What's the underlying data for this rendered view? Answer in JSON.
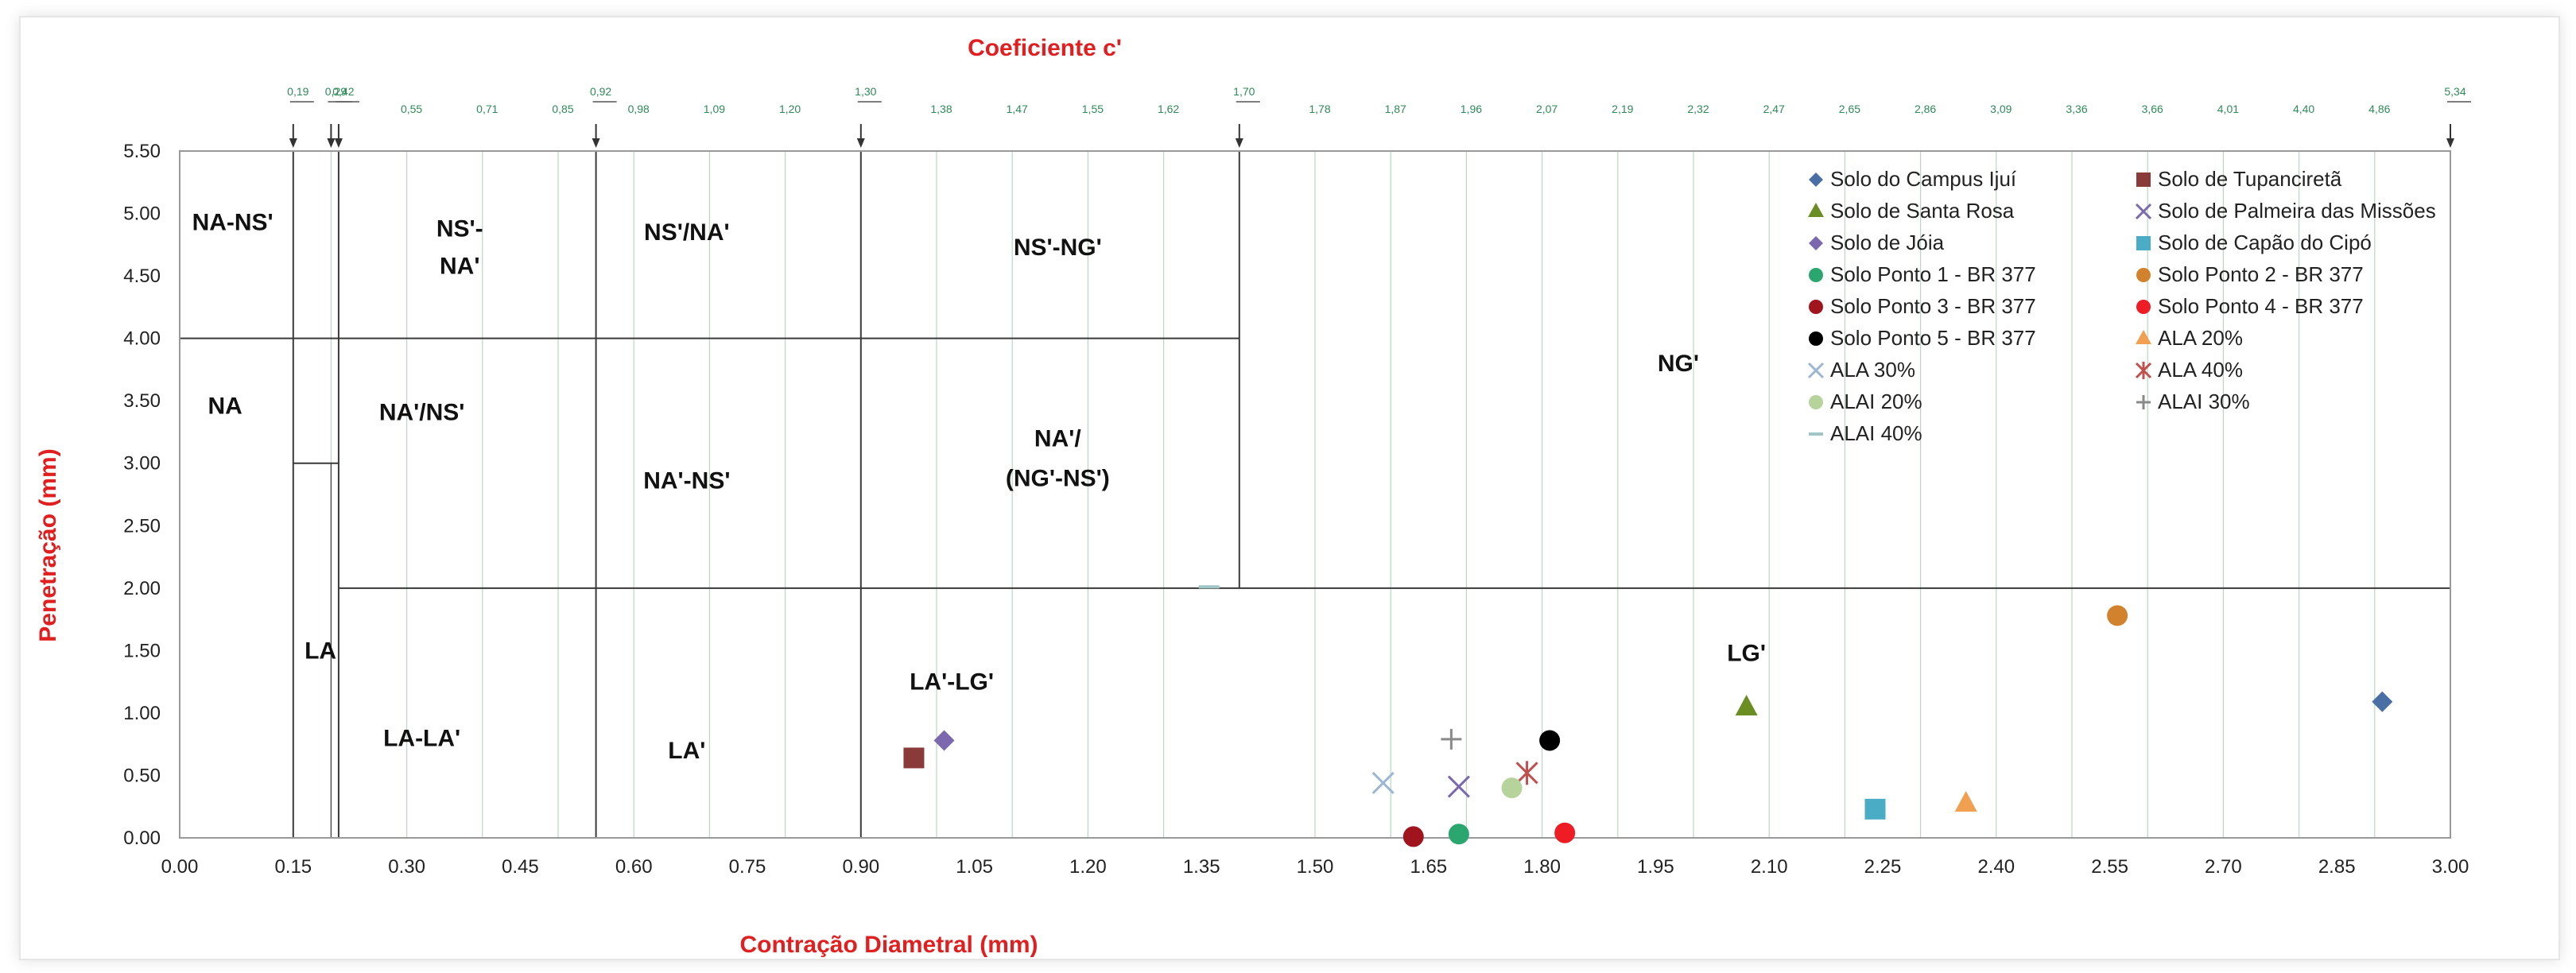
{
  "chart_data": {
    "type": "scatter",
    "title": "Coeficiente c'",
    "xlabel": "Contração Diametral  (mm)",
    "ylabel": "Penetração (mm)",
    "xlim": [
      0,
      3.0
    ],
    "ylim": [
      0,
      5.5
    ],
    "x_ticks": [
      "0.00",
      "0.15",
      "0.30",
      "0.45",
      "0.60",
      "0.75",
      "0.90",
      "1.05",
      "1.20",
      "1.35",
      "1.50",
      "1.65",
      "1.80",
      "1.95",
      "2.10",
      "2.25",
      "2.40",
      "2.55",
      "2.70",
      "2.85",
      "3.00"
    ],
    "y_ticks": [
      "0.00",
      "0.50",
      "1.00",
      "1.50",
      "2.00",
      "2.50",
      "3.00",
      "3.50",
      "4.00",
      "4.50",
      "5.00",
      "5.50"
    ],
    "top_axis_ticks": [
      {
        "x": 0.15,
        "label": "0,19"
      },
      {
        "x": 0.2,
        "label": "0,29"
      },
      {
        "x": 0.21,
        "label": "0,42"
      },
      {
        "x": 0.3,
        "label": "0,55"
      },
      {
        "x": 0.4,
        "label": "0,71"
      },
      {
        "x": 0.5,
        "label": "0,85"
      },
      {
        "x": 0.55,
        "label": "0,92"
      },
      {
        "x": 0.6,
        "label": "0,98"
      },
      {
        "x": 0.7,
        "label": "1,09"
      },
      {
        "x": 0.8,
        "label": "1,20"
      },
      {
        "x": 0.9,
        "label": "1,30"
      },
      {
        "x": 1.0,
        "label": "1,38"
      },
      {
        "x": 1.1,
        "label": "1,47"
      },
      {
        "x": 1.2,
        "label": "1,55"
      },
      {
        "x": 1.3,
        "label": "1,62"
      },
      {
        "x": 1.4,
        "label": "1,70"
      },
      {
        "x": 1.5,
        "label": "1,78"
      },
      {
        "x": 1.6,
        "label": "1,87"
      },
      {
        "x": 1.7,
        "label": "1,96"
      },
      {
        "x": 1.8,
        "label": "2,07"
      },
      {
        "x": 1.9,
        "label": "2,19"
      },
      {
        "x": 2.0,
        "label": "2,32"
      },
      {
        "x": 2.1,
        "label": "2,47"
      },
      {
        "x": 2.2,
        "label": "2,65"
      },
      {
        "x": 2.3,
        "label": "2,86"
      },
      {
        "x": 2.4,
        "label": "3,09"
      },
      {
        "x": 2.5,
        "label": "3,36"
      },
      {
        "x": 2.6,
        "label": "3,66"
      },
      {
        "x": 2.7,
        "label": "4,01"
      },
      {
        "x": 2.8,
        "label": "4,40"
      },
      {
        "x": 2.9,
        "label": "4,86"
      },
      {
        "x": 3.0,
        "label": "5,34"
      }
    ],
    "zone_labels": [
      {
        "text": "NA-NS'",
        "x": 0.07,
        "y": 4.93
      },
      {
        "text": "NS'-",
        "x": 0.37,
        "y": 4.88
      },
      {
        "text": "NA'",
        "x": 0.37,
        "y": 4.58
      },
      {
        "text": "NS'/NA'",
        "x": 0.67,
        "y": 4.85
      },
      {
        "text": "NS'-NG'",
        "x": 1.16,
        "y": 4.73
      },
      {
        "text": "NA",
        "x": 0.06,
        "y": 3.46
      },
      {
        "text": "NA'/NS'",
        "x": 0.32,
        "y": 3.41
      },
      {
        "text": "NG'",
        "x": 1.98,
        "y": 3.8
      },
      {
        "text": "NA'/",
        "x": 1.16,
        "y": 3.2
      },
      {
        "text": "(NG'-NS')",
        "x": 1.16,
        "y": 2.88
      },
      {
        "text": "NA'-NS'",
        "x": 0.67,
        "y": 2.86
      },
      {
        "text": "LA",
        "x": 0.186,
        "y": 1.5
      },
      {
        "text": "LG'",
        "x": 2.07,
        "y": 1.48
      },
      {
        "text": "LA'-LG'",
        "x": 1.02,
        "y": 1.25
      },
      {
        "text": "LA-LA'",
        "x": 0.32,
        "y": 0.8
      },
      {
        "text": "LA'",
        "x": 0.67,
        "y": 0.7
      }
    ],
    "series": [
      {
        "name": "Solo do Campus Ijuí",
        "marker": "diamond",
        "color": "#4a6fa5",
        "points": [
          [
            2.91,
            1.09
          ]
        ]
      },
      {
        "name": "Solo de Tupanciretã",
        "marker": "square",
        "color": "#8b3a3a",
        "points": [
          [
            0.97,
            0.64
          ]
        ]
      },
      {
        "name": "Solo de Santa Rosa",
        "marker": "triangle",
        "color": "#6b8e23",
        "points": [
          [
            2.07,
            1.05
          ]
        ]
      },
      {
        "name": "Solo de Palmeira das Missões",
        "marker": "x",
        "color": "#7b68ae",
        "points": [
          [
            1.69,
            0.41
          ]
        ]
      },
      {
        "name": "Solo de Jóia",
        "marker": "diamond",
        "color": "#7b68ae",
        "points": [
          [
            1.01,
            0.78
          ]
        ]
      },
      {
        "name": "Solo de Capão do Cipó",
        "marker": "square",
        "color": "#4bacc6",
        "points": [
          [
            2.24,
            0.23
          ]
        ]
      },
      {
        "name": "Solo Ponto 1 - BR 377",
        "marker": "circle",
        "color": "#2ca66f",
        "points": [
          [
            1.69,
            0.03
          ]
        ]
      },
      {
        "name": "Solo Ponto 2 - BR 377",
        "marker": "circle",
        "color": "#d2822d",
        "points": [
          [
            2.56,
            1.78
          ]
        ]
      },
      {
        "name": "Solo Ponto 3 - BR 377",
        "marker": "circle",
        "color": "#a0141e",
        "points": [
          [
            1.63,
            0.01
          ]
        ]
      },
      {
        "name": "Solo Ponto 4 - BR 377",
        "marker": "circle",
        "color": "#ee1c25",
        "points": [
          [
            1.83,
            0.04
          ]
        ]
      },
      {
        "name": "Solo Ponto 5 - BR 377",
        "marker": "circle",
        "color": "#000000",
        "points": [
          [
            1.81,
            0.78
          ]
        ]
      },
      {
        "name": "ALA 20%",
        "marker": "triangle",
        "color": "#f0a050",
        "points": [
          [
            2.36,
            0.28
          ]
        ]
      },
      {
        "name": "ALA 30%",
        "marker": "x",
        "color": "#9bb7d4",
        "points": [
          [
            1.59,
            0.44
          ]
        ]
      },
      {
        "name": "ALA 40%",
        "marker": "star",
        "color": "#c0504d",
        "points": [
          [
            1.78,
            0.52
          ]
        ]
      },
      {
        "name": "ALAI 20%",
        "marker": "circle",
        "color": "#b5d39b",
        "points": [
          [
            1.76,
            0.4
          ]
        ]
      },
      {
        "name": "ALAI 30%",
        "marker": "plus",
        "color": "#8a8a8a",
        "points": [
          [
            1.68,
            0.79
          ]
        ]
      },
      {
        "name": "ALAI 40%",
        "marker": "dash",
        "color": "#9fc5c5",
        "points": [
          [
            1.36,
            2.01
          ]
        ]
      }
    ]
  }
}
